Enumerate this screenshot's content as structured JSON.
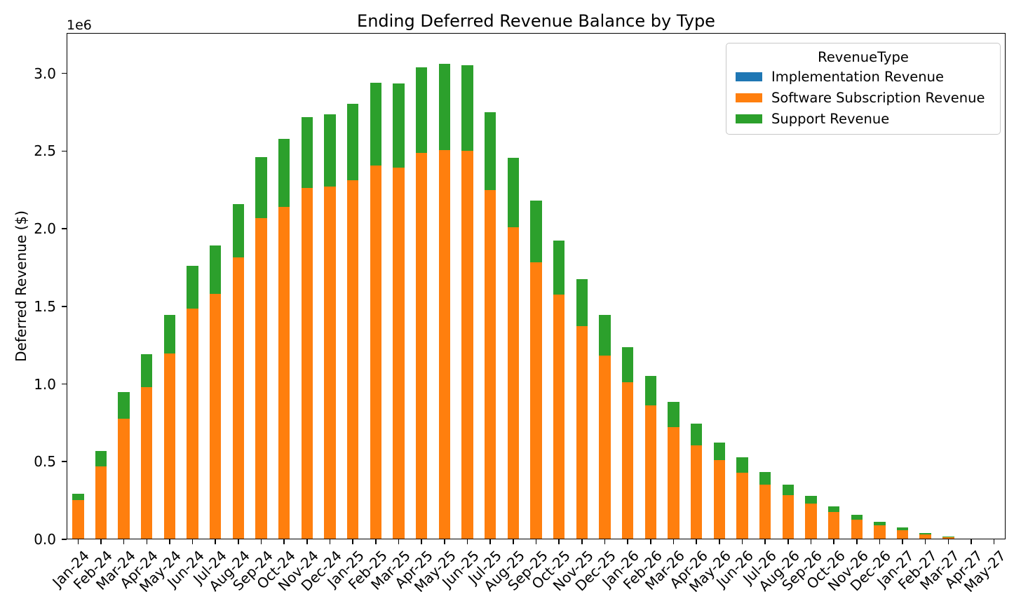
{
  "figure": {
    "background": "#ffffff",
    "spine_color": "#000000"
  },
  "chart_data": {
    "type": "bar",
    "stacked": true,
    "title": "Ending Deferred Revenue Balance by Type",
    "xlabel": "",
    "ylabel": "Deferred Revenue ($)",
    "y_offset_text": "1e6",
    "grid": false,
    "ylim": [
      0,
      3260000
    ],
    "legend": {
      "title": "RevenueType",
      "position": "upper right"
    },
    "y_axis": {
      "ticks": [
        {
          "label": "0.0",
          "value": 0
        },
        {
          "label": "0.5",
          "value": 500000
        },
        {
          "label": "1.0",
          "value": 1000000
        },
        {
          "label": "1.5",
          "value": 1500000
        },
        {
          "label": "2.0",
          "value": 2000000
        },
        {
          "label": "2.5",
          "value": 2500000
        },
        {
          "label": "3.0",
          "value": 3000000
        }
      ]
    },
    "categories": [
      "Jan-24",
      "Feb-24",
      "Mar-24",
      "Apr-24",
      "May-24",
      "Jun-24",
      "Jul-24",
      "Aug-24",
      "Sep-24",
      "Oct-24",
      "Nov-24",
      "Dec-24",
      "Jan-25",
      "Feb-25",
      "Mar-25",
      "Apr-25",
      "May-25",
      "Jun-25",
      "Jul-25",
      "Aug-25",
      "Sep-25",
      "Oct-25",
      "Nov-25",
      "Dec-25",
      "Jan-26",
      "Feb-26",
      "Mar-26",
      "Apr-26",
      "May-26",
      "Jun-26",
      "Jul-26",
      "Aug-26",
      "Sep-26",
      "Oct-26",
      "Nov-26",
      "Dec-26",
      "Jan-27",
      "Feb-27",
      "Mar-27",
      "Apr-27",
      "May-27"
    ],
    "series": [
      {
        "key": "implementation",
        "name": "Implementation Revenue",
        "color": "#1f77b4",
        "values": [
          0,
          0,
          0,
          0,
          0,
          0,
          0,
          0,
          0,
          0,
          0,
          0,
          0,
          0,
          0,
          0,
          0,
          0,
          0,
          0,
          0,
          0,
          0,
          0,
          0,
          0,
          0,
          0,
          0,
          0,
          0,
          0,
          0,
          0,
          0,
          0,
          0,
          0,
          0,
          0,
          0
        ]
      },
      {
        "key": "software-subscription",
        "name": "Software Subscription Revenue",
        "color": "#ff7f0e",
        "values": [
          255000,
          470000,
          778000,
          980000,
          1196000,
          1485000,
          1580000,
          1813000,
          2068000,
          2140000,
          2260000,
          2272000,
          2310000,
          2408000,
          2394000,
          2490000,
          2505000,
          2502000,
          2250000,
          2010000,
          1785000,
          1575000,
          1372000,
          1184000,
          1012000,
          862000,
          722000,
          606000,
          510000,
          429000,
          351000,
          283000,
          229000,
          176000,
          126000,
          89000,
          57000,
          30000,
          13000,
          4000,
          1000
        ]
      },
      {
        "key": "support",
        "name": "Support Revenue",
        "color": "#2ca02c",
        "values": [
          40000,
          100000,
          168000,
          213000,
          247000,
          278000,
          312000,
          346000,
          392000,
          438000,
          457000,
          462000,
          492000,
          530000,
          543000,
          548000,
          558000,
          552000,
          500000,
          448000,
          395000,
          348000,
          305000,
          262000,
          226000,
          188000,
          162000,
          138000,
          114000,
          100000,
          84000,
          68000,
          52000,
          38000,
          32000,
          24000,
          18000,
          9000,
          5000,
          1500,
          500
        ]
      }
    ]
  }
}
